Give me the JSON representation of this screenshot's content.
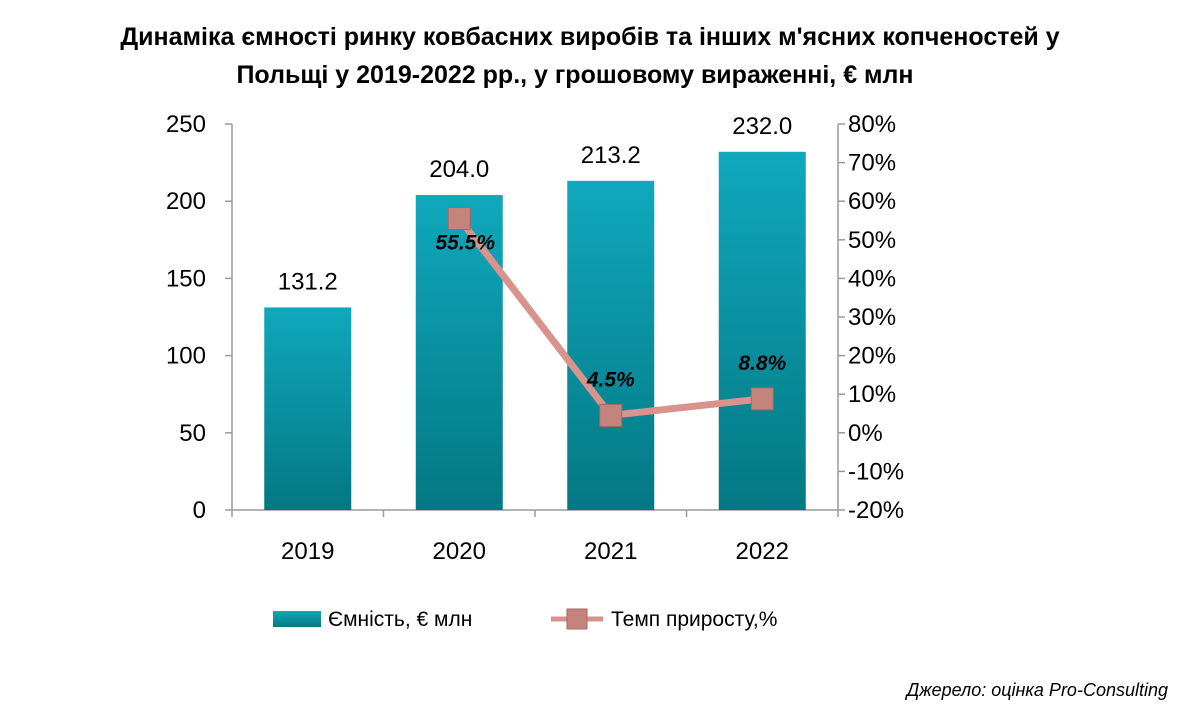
{
  "chart_data": {
    "type": "bar",
    "title_lines": [
      "Динаміка ємності ринку ковбасних виробів та інших м'ясних копченостей у",
      "Польщі у 2019-2022 рр., у грошовому вираженні, € млн"
    ],
    "categories": [
      "2019",
      "2020",
      "2021",
      "2022"
    ],
    "series": [
      {
        "name": "Ємність, € млн",
        "type": "bar",
        "axis": "left",
        "values": [
          131.2,
          204.0,
          213.2,
          232.0
        ],
        "labels": [
          "131.2",
          "204.0",
          "213.2",
          "232.0"
        ],
        "color": "#0aa3b5"
      },
      {
        "name": "Темп приросту,%",
        "type": "line",
        "axis": "right",
        "values": [
          null,
          55.5,
          4.5,
          8.8
        ],
        "labels": [
          "",
          "55.5%",
          "4.5%",
          "8.8%"
        ],
        "color": "#d8938c"
      }
    ],
    "y_left": {
      "min": 0,
      "max": 250,
      "ticks": [
        "0",
        "50",
        "100",
        "150",
        "200",
        "250"
      ]
    },
    "y_right": {
      "min": -20,
      "max": 80,
      "ticks": [
        "-20%",
        "-10%",
        "0%",
        "10%",
        "20%",
        "30%",
        "40%",
        "50%",
        "60%",
        "70%",
        "80%"
      ]
    },
    "legend_position": "bottom",
    "grid": false
  },
  "source": "Джерело: оцінка Pro-Consulting"
}
